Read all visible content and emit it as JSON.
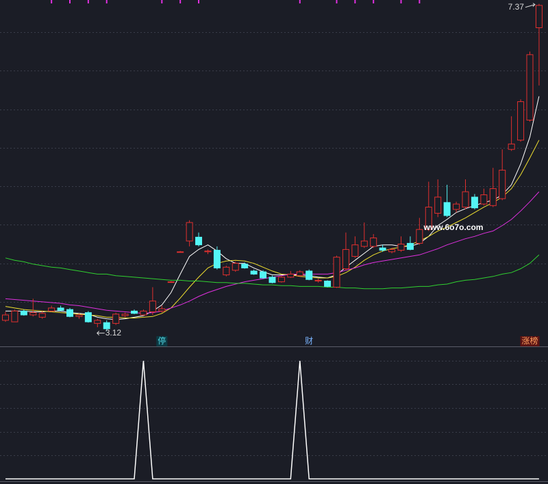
{
  "chart_data": [
    {
      "type": "candlestick",
      "ylim": [
        2.93,
        7.42
      ],
      "yticks": [
        3.5,
        4.0,
        4.5,
        5.0,
        5.5,
        6.0,
        6.5,
        7.0
      ],
      "grid": true,
      "up_color": "#e0302f",
      "down_color": "#54f5f5",
      "ohlc": [
        [
          3.26,
          3.37,
          3.24,
          3.33
        ],
        [
          3.24,
          3.4,
          3.24,
          3.38
        ],
        [
          3.38,
          3.4,
          3.32,
          3.33
        ],
        [
          3.33,
          3.54,
          3.31,
          3.36
        ],
        [
          3.3,
          3.38,
          3.28,
          3.35
        ],
        [
          3.38,
          3.45,
          3.37,
          3.42
        ],
        [
          3.42,
          3.45,
          3.38,
          3.39
        ],
        [
          3.4,
          3.42,
          3.3,
          3.31
        ],
        [
          3.31,
          3.35,
          3.28,
          3.33
        ],
        [
          3.36,
          3.38,
          3.23,
          3.24
        ],
        [
          3.22,
          3.28,
          3.17,
          3.26
        ],
        [
          3.23,
          3.26,
          3.12,
          3.15
        ],
        [
          3.22,
          3.36,
          3.2,
          3.34
        ],
        [
          3.32,
          3.36,
          3.3,
          3.34
        ],
        [
          3.38,
          3.4,
          3.34,
          3.35
        ],
        [
          3.33,
          3.4,
          3.32,
          3.38
        ],
        [
          3.37,
          3.69,
          3.33,
          3.51
        ],
        [
          3.38,
          3.45,
          3.36,
          3.41
        ],
        [
          3.76,
          3.77,
          3.75,
          3.76
        ],
        [
          4.15,
          4.16,
          4.14,
          4.15
        ],
        [
          4.29,
          4.56,
          4.22,
          4.53
        ],
        [
          4.34,
          4.4,
          4.22,
          4.24
        ],
        [
          4.15,
          4.18,
          4.12,
          4.16
        ],
        [
          4.17,
          4.22,
          3.92,
          3.94
        ],
        [
          3.85,
          3.97,
          3.83,
          3.95
        ],
        [
          3.91,
          4.02,
          3.89,
          4.0
        ],
        [
          3.99,
          4.01,
          3.93,
          3.94
        ],
        [
          3.9,
          3.92,
          3.85,
          3.86
        ],
        [
          3.89,
          3.91,
          3.8,
          3.81
        ],
        [
          3.82,
          3.84,
          3.74,
          3.75
        ],
        [
          3.76,
          3.84,
          3.75,
          3.82
        ],
        [
          3.82,
          3.9,
          3.81,
          3.86
        ],
        [
          3.84,
          3.91,
          3.83,
          3.89
        ],
        [
          3.9,
          3.92,
          3.78,
          3.79
        ],
        [
          3.77,
          3.8,
          3.75,
          3.78
        ],
        [
          3.77,
          3.78,
          3.69,
          3.7
        ],
        [
          3.69,
          4.1,
          3.68,
          4.08
        ],
        [
          3.93,
          4.4,
          3.91,
          4.18
        ],
        [
          4.09,
          4.35,
          4.07,
          4.24
        ],
        [
          4.22,
          4.53,
          4.2,
          4.29
        ],
        [
          4.22,
          4.38,
          4.2,
          4.33
        ],
        [
          4.2,
          4.24,
          4.15,
          4.17
        ],
        [
          4.15,
          4.2,
          4.13,
          4.18
        ],
        [
          4.17,
          4.35,
          4.15,
          4.25
        ],
        [
          4.26,
          4.35,
          4.17,
          4.18
        ],
        [
          4.26,
          4.59,
          4.24,
          4.44
        ],
        [
          4.44,
          5.06,
          4.42,
          4.73
        ],
        [
          4.65,
          5.09,
          4.6,
          4.86
        ],
        [
          4.79,
          5.02,
          4.6,
          4.62
        ],
        [
          4.7,
          4.8,
          4.66,
          4.77
        ],
        [
          4.73,
          5.09,
          4.7,
          4.93
        ],
        [
          4.86,
          4.9,
          4.7,
          4.72
        ],
        [
          4.77,
          4.97,
          4.75,
          4.89
        ],
        [
          4.75,
          5.24,
          4.73,
          4.97
        ],
        [
          4.84,
          5.48,
          4.82,
          5.21
        ],
        [
          5.48,
          5.91,
          5.46,
          5.55
        ],
        [
          5.6,
          6.13,
          5.58,
          6.1
        ],
        [
          5.86,
          6.75,
          5.84,
          6.71
        ],
        [
          7.06,
          7.37,
          6.31,
          7.35
        ]
      ],
      "lines": [
        {
          "color": "#ffffff",
          "values": [
            3.38,
            3.38,
            3.38,
            3.37,
            3.37,
            3.38,
            3.38,
            3.36,
            3.35,
            3.34,
            3.3,
            3.28,
            3.27,
            3.28,
            3.3,
            3.32,
            3.38,
            3.46,
            3.62,
            3.86,
            4.09,
            4.18,
            4.24,
            4.16,
            4.06,
            4.0,
            4.0,
            3.94,
            3.89,
            3.85,
            3.85,
            3.85,
            3.85,
            3.84,
            3.82,
            3.81,
            3.85,
            3.95,
            4.04,
            4.13,
            4.22,
            4.24,
            4.24,
            4.22,
            4.22,
            4.26,
            4.35,
            4.49,
            4.57,
            4.66,
            4.71,
            4.75,
            4.79,
            4.82,
            4.89,
            5.02,
            5.29,
            5.64,
            6.17
          ]
        },
        {
          "color": "#f0e030",
          "values": [
            3.44,
            3.42,
            3.4,
            3.39,
            3.38,
            3.37,
            3.36,
            3.35,
            3.34,
            3.33,
            3.32,
            3.3,
            3.3,
            3.29,
            3.29,
            3.3,
            3.31,
            3.35,
            3.42,
            3.55,
            3.69,
            3.82,
            3.94,
            4.0,
            4.03,
            4.04,
            4.03,
            4.0,
            3.95,
            3.9,
            3.86,
            3.85,
            3.83,
            3.82,
            3.81,
            3.81,
            3.83,
            3.88,
            3.95,
            4.04,
            4.11,
            4.16,
            4.19,
            4.21,
            4.24,
            4.29,
            4.35,
            4.42,
            4.47,
            4.53,
            4.59,
            4.66,
            4.73,
            4.79,
            4.86,
            4.97,
            5.15,
            5.37,
            5.6
          ]
        },
        {
          "color": "#e030e0",
          "values": [
            3.54,
            3.53,
            3.52,
            3.51,
            3.5,
            3.49,
            3.48,
            3.46,
            3.45,
            3.43,
            3.41,
            3.39,
            3.38,
            3.37,
            3.36,
            3.35,
            3.36,
            3.38,
            3.42,
            3.46,
            3.51,
            3.57,
            3.62,
            3.66,
            3.7,
            3.73,
            3.76,
            3.78,
            3.8,
            3.82,
            3.84,
            3.86,
            3.86,
            3.86,
            3.86,
            3.86,
            3.88,
            3.91,
            3.94,
            3.98,
            4.01,
            4.03,
            4.05,
            4.07,
            4.09,
            4.11,
            4.15,
            4.19,
            4.24,
            4.28,
            4.32,
            4.35,
            4.39,
            4.42,
            4.49,
            4.57,
            4.68,
            4.8,
            4.93
          ]
        },
        {
          "color": "#30d030",
          "values": [
            4.07,
            4.04,
            4.02,
            3.99,
            3.97,
            3.95,
            3.94,
            3.92,
            3.9,
            3.88,
            3.86,
            3.86,
            3.84,
            3.83,
            3.82,
            3.81,
            3.8,
            3.79,
            3.78,
            3.78,
            3.77,
            3.77,
            3.76,
            3.75,
            3.75,
            3.74,
            3.74,
            3.73,
            3.72,
            3.72,
            3.71,
            3.71,
            3.7,
            3.7,
            3.7,
            3.69,
            3.69,
            3.68,
            3.68,
            3.67,
            3.67,
            3.67,
            3.68,
            3.68,
            3.69,
            3.7,
            3.7,
            3.72,
            3.73,
            3.76,
            3.78,
            3.79,
            3.81,
            3.83,
            3.86,
            3.88,
            3.93,
            4.0,
            4.11
          ]
        }
      ],
      "flag_color": "#e030e0",
      "flags": [
        0,
        0,
        0,
        0,
        0,
        1,
        0,
        1,
        0,
        1,
        0,
        1,
        0,
        0,
        0,
        0,
        0,
        1,
        0,
        1,
        0,
        1,
        0,
        0,
        0,
        0,
        0,
        0,
        0,
        0,
        0,
        0,
        1,
        0,
        0,
        0,
        1,
        0,
        1,
        0,
        1,
        0,
        0,
        1,
        0,
        1,
        0,
        0,
        0,
        0,
        0,
        0,
        0,
        0,
        0,
        0,
        0,
        0,
        0
      ],
      "high_label": "7.37",
      "low_label": "3.12",
      "events": [
        null,
        null,
        null,
        null,
        null,
        null,
        null,
        null,
        null,
        null,
        null,
        null,
        null,
        null,
        null,
        null,
        null,
        {
          "label": "停",
          "color": "#4fd4e0",
          "background": "#0d3a44"
        },
        null,
        null,
        null,
        null,
        null,
        null,
        null,
        null,
        null,
        null,
        null,
        null,
        null,
        null,
        null,
        {
          "label": "财",
          "color": "#7ab4ff",
          "background": "#1b1d26"
        },
        null,
        null,
        null,
        null,
        null,
        null,
        null,
        null,
        null,
        null,
        null,
        null,
        null,
        null,
        null,
        null,
        null,
        null,
        null,
        null,
        null,
        null,
        null,
        {
          "label": "涨榜",
          "color": "#ffa060",
          "background": "#5a1414"
        },
        null
      ],
      "watermark": "www.6o7o.com"
    },
    {
      "type": "line",
      "ylim": [
        -0.02,
        1.11
      ],
      "yticks": [
        0.2,
        0.4,
        0.6,
        0.8,
        1
      ],
      "grid": true,
      "color": "#ffffff",
      "values": [
        0,
        0,
        0,
        0,
        0,
        0,
        0,
        0,
        0,
        0,
        0,
        0,
        0,
        0,
        0,
        1,
        0,
        0,
        0,
        0,
        0,
        0,
        0,
        0,
        0,
        0,
        0,
        0,
        0,
        0,
        0,
        0,
        1,
        0,
        0,
        0,
        0,
        0,
        0,
        0,
        0,
        0,
        0,
        0,
        0,
        0,
        0,
        0,
        0,
        0,
        0,
        0,
        0,
        0,
        0,
        0,
        0,
        0,
        0
      ]
    }
  ]
}
